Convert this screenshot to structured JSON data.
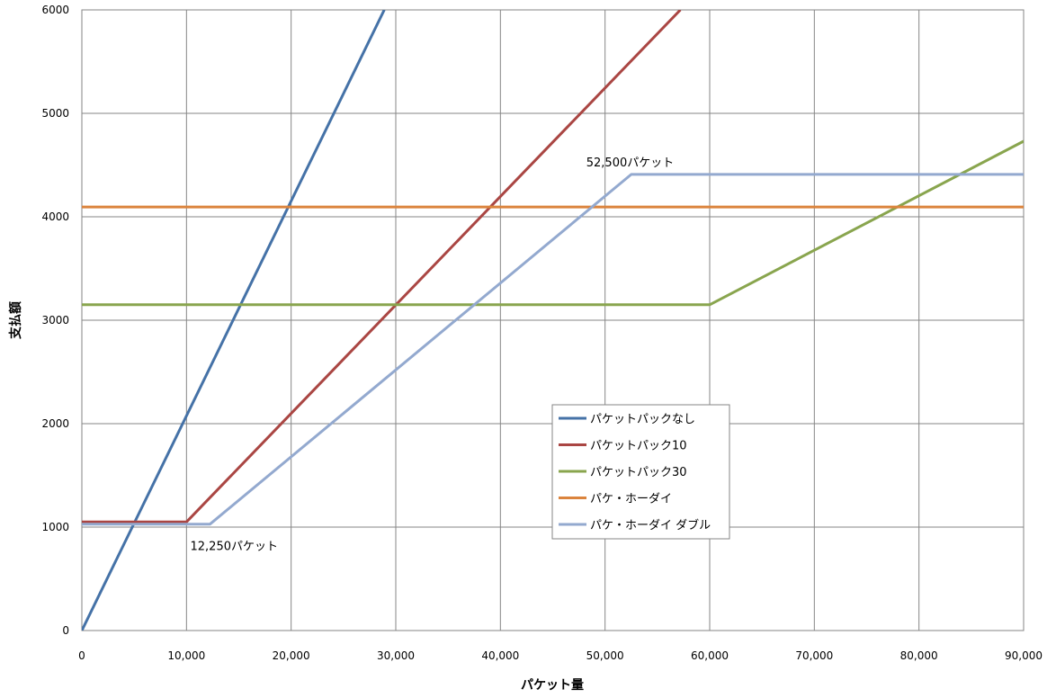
{
  "chart_data": {
    "type": "line",
    "xlabel": "パケット量",
    "ylabel": "支払額",
    "xlim": [
      0,
      90000
    ],
    "ylim": [
      0,
      6000
    ],
    "xticks": [
      0,
      10000,
      20000,
      30000,
      40000,
      50000,
      60000,
      70000,
      80000,
      90000
    ],
    "xtick_labels": [
      "0",
      "10,000",
      "20,000",
      "30,000",
      "40,000",
      "50,000",
      "60,000",
      "70,000",
      "80,000",
      "90,000"
    ],
    "yticks": [
      0,
      1000,
      2000,
      3000,
      4000,
      5000,
      6000
    ],
    "ytick_labels": [
      "0",
      "1000",
      "2000",
      "3000",
      "4000",
      "5000",
      "6000"
    ],
    "grid": true,
    "legend_position": "center-right",
    "series": [
      {
        "name": "パケットパックなし",
        "color": "#4572a7",
        "points": [
          [
            0,
            0
          ],
          [
            28900,
            6000
          ]
        ]
      },
      {
        "name": "パケットパック10",
        "color": "#aa4643",
        "points": [
          [
            0,
            1050
          ],
          [
            10000,
            1050
          ],
          [
            57200,
            6000
          ]
        ]
      },
      {
        "name": "パケットパック30",
        "color": "#89a54e",
        "points": [
          [
            0,
            3150
          ],
          [
            60000,
            3150
          ],
          [
            90000,
            4730
          ]
        ]
      },
      {
        "name": "パケ・ホーダイ",
        "color": "#db843d",
        "points": [
          [
            0,
            4095
          ],
          [
            90000,
            4095
          ]
        ]
      },
      {
        "name": "パケ・ホーダイ ダブル",
        "color": "#93a9cf",
        "points": [
          [
            0,
            1029
          ],
          [
            12250,
            1029
          ],
          [
            52500,
            4410
          ],
          [
            90000,
            4410
          ]
        ]
      }
    ],
    "annotations": [
      {
        "text": "12,250パケット",
        "x": 12250,
        "y": 1029
      },
      {
        "text": "52,500パケット",
        "x": 52500,
        "y": 4410
      }
    ]
  }
}
